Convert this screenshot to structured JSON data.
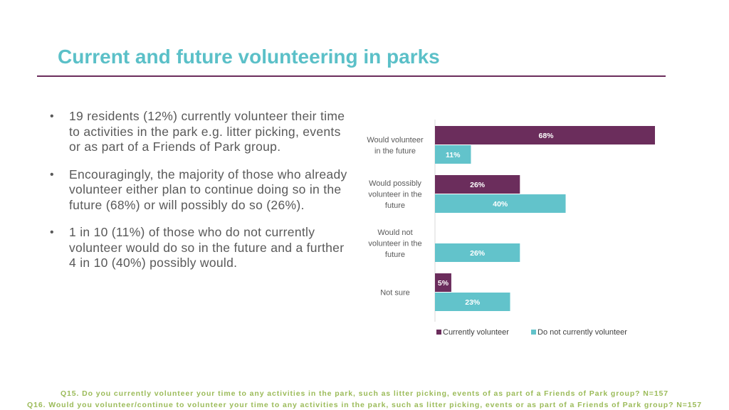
{
  "title": "Current and future volunteering in parks",
  "bullets": [
    "19 residents (12%) currently volunteer their time to activities in the park e.g. litter picking, events or as part of a Friends of Park group.",
    "Encouragingly, the majority of those who already volunteer either plan to continue doing so in the future (68%) or will possibly do so (26%).",
    "1 in 10 (11%) of those who do not currently volunteer would do so in the future and a further 4 in 10 (40%) possibly would."
  ],
  "footnotes": {
    "q15": "Q15. Do you currently volunteer your time to any activities in the park, such as litter picking, events of as part of a Friends of Park group? N=157",
    "q16": "Q16. Would you volunteer/continue to volunteer your time to any activities in the park, such as litter picking, events or as part of a Friends of Park group? N=157"
  },
  "colors": {
    "accent": "#5bc0c8",
    "rule": "#6b2d5c",
    "series_current": "#6b2d5c",
    "series_not_current": "#62c3cb",
    "body_text": "#595959",
    "footnote": "#9bbb59"
  },
  "chart_data": {
    "type": "bar",
    "orientation": "horizontal",
    "categories": [
      [
        "Would volunteer",
        "in the future"
      ],
      [
        "Would possibly",
        "volunteer in the",
        "future"
      ],
      [
        "Would not",
        "volunteer in the",
        "future"
      ],
      [
        "Not sure"
      ]
    ],
    "series": [
      {
        "name": "Currently volunteer",
        "values": [
          68,
          26,
          0,
          5
        ],
        "labels": [
          "68%",
          "26%",
          "",
          "5%"
        ]
      },
      {
        "name": "Do not currently volunteer",
        "values": [
          11,
          40,
          26,
          23
        ],
        "labels": [
          "11%",
          "40%",
          "26%",
          "23%"
        ]
      }
    ],
    "unit": "%",
    "xlim": [
      0,
      68
    ],
    "legend_position": "bottom",
    "grid": false
  }
}
